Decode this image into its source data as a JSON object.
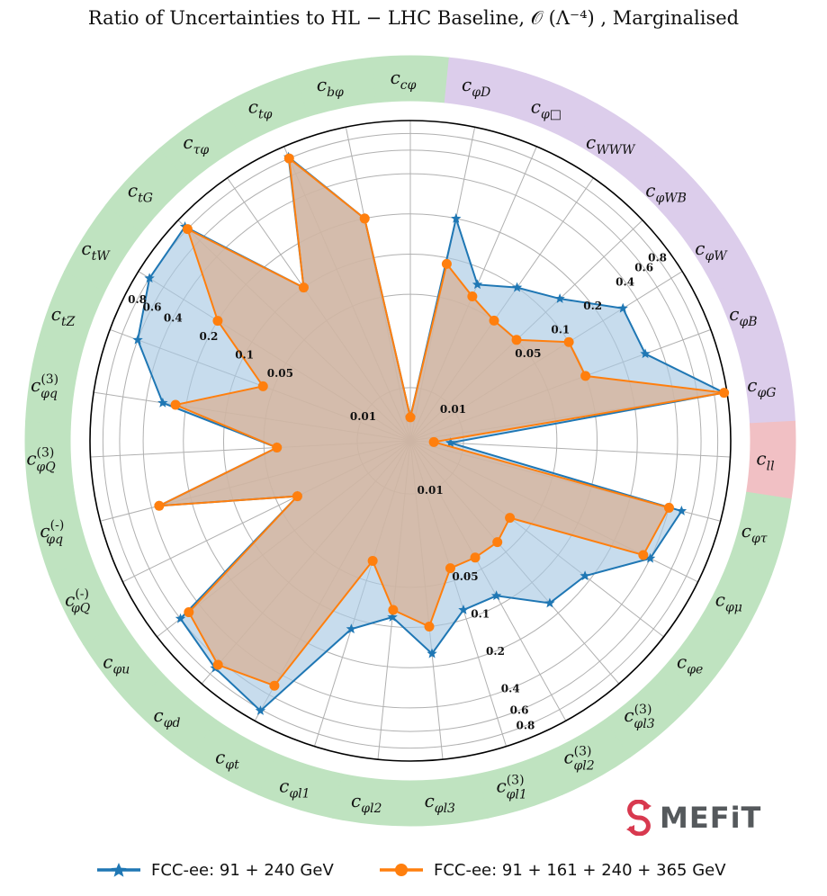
{
  "title": "Ratio of Uncertainties to HL − LHC Baseline, 𝒪 (Λ⁻⁴) , Marginalised",
  "colors": {
    "series1": "#1f77b4",
    "series2": "#ff7f0e",
    "fill1": "#a9c9e3",
    "fill2": "#d8b296",
    "sector_green": "#bfe3c0",
    "sector_purple": "#dccdeb",
    "sector_red": "#f1c0c4",
    "logo_red": "#d8394f"
  },
  "logo": {
    "text": "MEFiT"
  },
  "legend": [
    {
      "label": "FCC-ee: 91 + 240 GeV",
      "marker": "star"
    },
    {
      "label": "FCC-ee: 91 + 161 + 240 + 365 GeV",
      "marker": "circle"
    }
  ],
  "chart_data": {
    "type": "radar",
    "scale": "log",
    "ticks": [
      0.01,
      0.05,
      0.1,
      0.2,
      0.4,
      0.6,
      0.8
    ],
    "tick_labels": [
      "0.01",
      "0.05",
      "0.1",
      "0.2",
      "0.4",
      "0.6",
      "0.8"
    ],
    "rlim": [
      0.004,
      1.0
    ],
    "categories": [
      {
        "label": "c_{cφ}",
        "group": "green"
      },
      {
        "label": "c_{φD}",
        "group": "purple"
      },
      {
        "label": "c_{φ□}",
        "group": "purple"
      },
      {
        "label": "c_{WWW}",
        "group": "purple"
      },
      {
        "label": "c_{φWB}",
        "group": "purple"
      },
      {
        "label": "c_{φW}",
        "group": "purple"
      },
      {
        "label": "c_{φB}",
        "group": "purple"
      },
      {
        "label": "c_{φG}",
        "group": "purple"
      },
      {
        "label": "c_{ll}",
        "group": "red"
      },
      {
        "label": "c_{φτ}",
        "group": "green"
      },
      {
        "label": "c_{φμ}",
        "group": "green"
      },
      {
        "label": "c_{φe}",
        "group": "green"
      },
      {
        "label": "c^{(3)}_{φl3}",
        "group": "green"
      },
      {
        "label": "c^{(3)}_{φl2}",
        "group": "green"
      },
      {
        "label": "c^{(3)}_{φl1}",
        "group": "green"
      },
      {
        "label": "c_{φl3}",
        "group": "green"
      },
      {
        "label": "c_{φl2}",
        "group": "green"
      },
      {
        "label": "c_{φl1}",
        "group": "green"
      },
      {
        "label": "c_{φt}",
        "group": "green"
      },
      {
        "label": "c_{φd}",
        "group": "green"
      },
      {
        "label": "c_{φu}",
        "group": "green"
      },
      {
        "label": "c^{(-)}_{φQ}",
        "group": "green"
      },
      {
        "label": "c^{(-)}_{φq}",
        "group": "green"
      },
      {
        "label": "c^{(3)}_{φQ}",
        "group": "green"
      },
      {
        "label": "c^{(3)}_{φq}",
        "group": "green"
      },
      {
        "label": "c_{tZ}",
        "group": "green"
      },
      {
        "label": "c_{tW}",
        "group": "green"
      },
      {
        "label": "c_{tG}",
        "group": "green"
      },
      {
        "label": "c_{τφ}",
        "group": "green"
      },
      {
        "label": "c_{tφ}",
        "group": "green"
      },
      {
        "label": "c_{bφ}",
        "group": "green"
      }
    ],
    "series": [
      {
        "name": "FCC-ee: 91 + 240 GeV",
        "values": [
          0.006,
          0.2,
          0.075,
          0.1,
          0.14,
          0.3,
          0.3,
          0.95,
          0.008,
          0.5,
          0.4,
          0.18,
          0.16,
          0.085,
          0.085,
          0.16,
          0.085,
          0.12,
          0.82,
          0.7,
          0.6,
          0.035,
          0.35,
          0.04,
          0.3,
          0.6,
          0.8,
          0.85,
          0.1,
          0.82,
          0.2
        ]
      },
      {
        "name": "FCC-ee: 91 + 161 + 240 + 365 GeV",
        "values": [
          0.006,
          0.09,
          0.06,
          0.05,
          0.05,
          0.1,
          0.1,
          0.95,
          0.006,
          0.4,
          0.35,
          0.035,
          0.04,
          0.04,
          0.04,
          0.1,
          0.075,
          0.035,
          0.5,
          0.65,
          0.5,
          0.035,
          0.35,
          0.04,
          0.24,
          0.06,
          0.2,
          0.8,
          0.1,
          0.8,
          0.2
        ]
      }
    ]
  }
}
